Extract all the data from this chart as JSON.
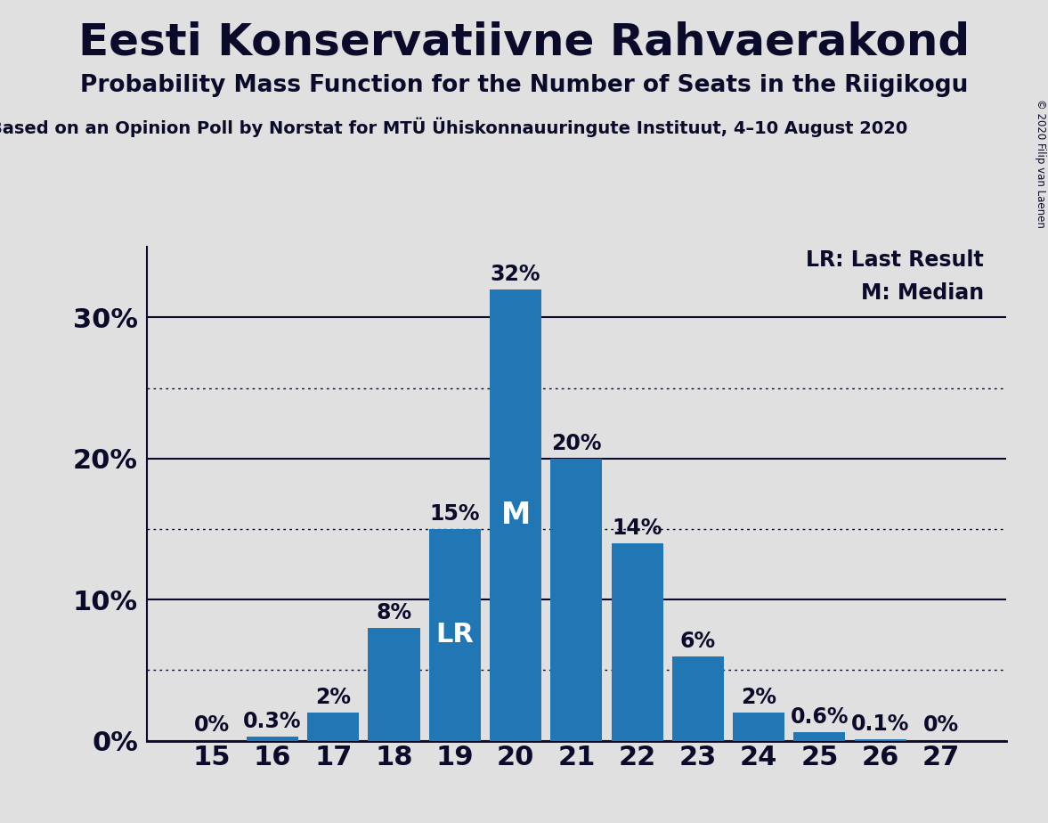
{
  "title": "Eesti Konservatiivne Rahvaerakond",
  "subtitle": "Probability Mass Function for the Number of Seats in the Riigikogu",
  "source_line": "Based on an Opinion Poll by Norstat for MTÜ Ühiskonnauuringute Instituut, 4–10 August 2020",
  "copyright": "© 2020 Filip van Laenen",
  "categories": [
    15,
    16,
    17,
    18,
    19,
    20,
    21,
    22,
    23,
    24,
    25,
    26,
    27
  ],
  "values": [
    0.0,
    0.3,
    2.0,
    8.0,
    15.0,
    32.0,
    20.0,
    14.0,
    6.0,
    2.0,
    0.6,
    0.1,
    0.0
  ],
  "labels": [
    "0%",
    "0.3%",
    "2%",
    "8%",
    "15%",
    "32%",
    "20%",
    "14%",
    "6%",
    "2%",
    "0.6%",
    "0.1%",
    "0%"
  ],
  "bar_color": "#2077b4",
  "background_color": "#e0e0e0",
  "text_color": "#0a0a2a",
  "ylim": [
    0,
    35
  ],
  "solid_yticks": [
    0,
    10,
    20,
    30
  ],
  "dotted_yticks": [
    5,
    15,
    25
  ],
  "lr_bar": 19,
  "median_bar": 20,
  "legend_lr": "LR: Last Result",
  "legend_m": "M: Median",
  "title_fontsize": 36,
  "subtitle_fontsize": 19,
  "source_fontsize": 14,
  "axis_fontsize": 22,
  "label_fontsize": 17
}
